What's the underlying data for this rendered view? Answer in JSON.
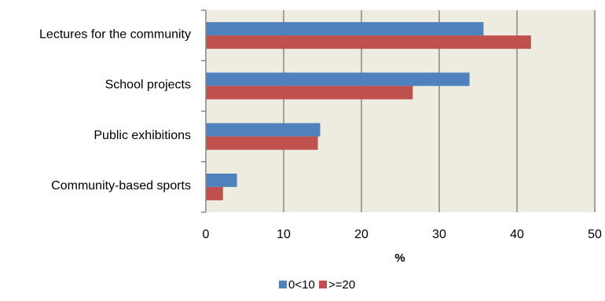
{
  "chart_data": {
    "type": "bar",
    "orientation": "horizontal",
    "categories": [
      "Lectures for the community",
      "School projects",
      "Public exhibitions",
      "Community-based sports"
    ],
    "series": [
      {
        "name": "0<10",
        "values": [
          35.7,
          33.9,
          14.7,
          4.0
        ],
        "color": "#4F81BD"
      },
      {
        "name": ">=20",
        "values": [
          41.8,
          26.6,
          14.4,
          2.2
        ],
        "color": "#C0504D"
      }
    ],
    "xlabel": "%",
    "xlim": [
      0,
      50
    ],
    "xticks": [
      "0",
      "10",
      "20",
      "30",
      "40",
      "50"
    ],
    "grid": true,
    "legend": "bottom",
    "plot_background": "#EEECE1",
    "gridline_color": "#868686"
  }
}
